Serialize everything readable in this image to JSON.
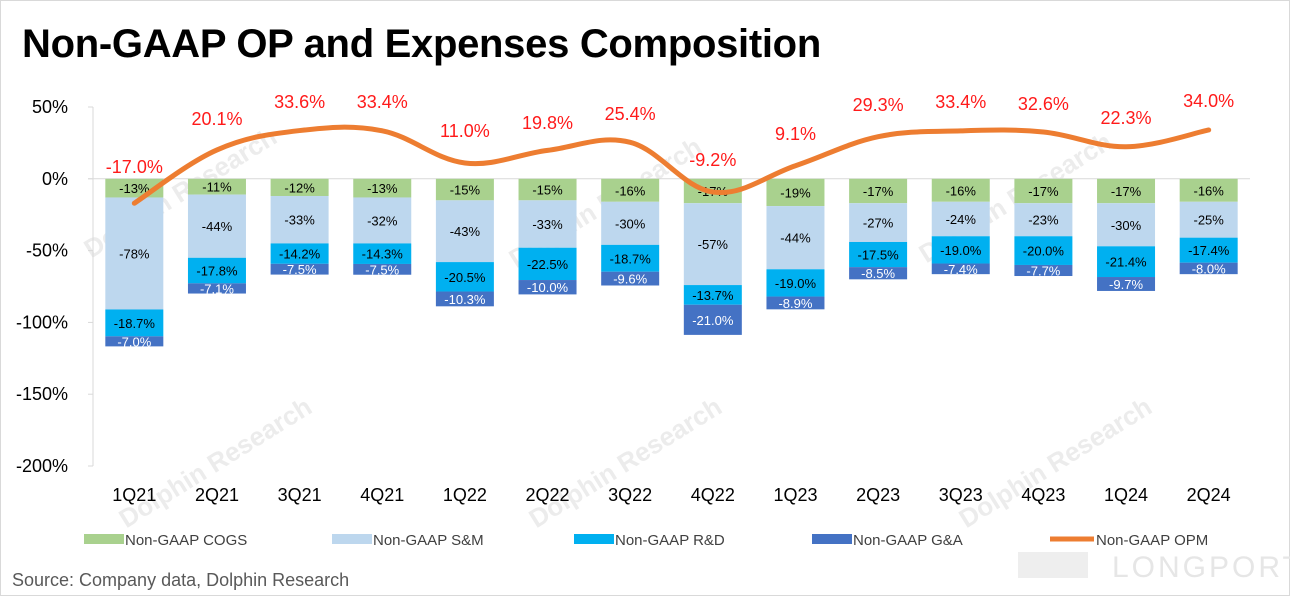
{
  "title": "Non-GAAP OP and Expenses Composition",
  "source": "Source: Company data, Dolphin Research",
  "watermark": "Dolphin Research",
  "watermark_brand": "LONGPORT",
  "chart_data": {
    "type": "bar",
    "stacked": true,
    "categories": [
      "1Q21",
      "2Q21",
      "3Q21",
      "4Q21",
      "1Q22",
      "2Q22",
      "3Q22",
      "4Q22",
      "1Q23",
      "2Q23",
      "3Q23",
      "4Q23",
      "1Q24",
      "2Q24"
    ],
    "ylim": [
      -200,
      50
    ],
    "yticks": [
      50,
      0,
      -50,
      -100,
      -150,
      -200
    ],
    "ytick_labels": [
      "50%",
      "0%",
      "-50%",
      "-100%",
      "-150%",
      "-200%"
    ],
    "series": [
      {
        "name": "Non-GAAP COGS",
        "color": "#a9d18e",
        "label_color": "#000000",
        "values": [
          -13,
          -11,
          -12,
          -13,
          -15,
          -15,
          -16,
          -17,
          -19,
          -17,
          -16,
          -17,
          -17,
          -16
        ],
        "labels": [
          "-13%",
          "-11%",
          "-12%",
          "-13%",
          "-15%",
          "-15%",
          "-16%",
          "-17%",
          "-19%",
          "-17%",
          "-16%",
          "-17%",
          "-17%",
          "-16%"
        ]
      },
      {
        "name": "Non-GAAP S&M",
        "color": "#bdd7ee",
        "label_color": "#000000",
        "values": [
          -78,
          -44,
          -33,
          -32,
          -43,
          -33,
          -30,
          -57,
          -44,
          -27,
          -24,
          -23,
          -30,
          -25
        ],
        "labels": [
          "-78%",
          "-44%",
          "-33%",
          "-32%",
          "-43%",
          "-33%",
          "-30%",
          "-57%",
          "-44%",
          "-27%",
          "-24%",
          "-23%",
          "-30%",
          "-25%"
        ]
      },
      {
        "name": "Non-GAAP R&D",
        "color": "#00b0f0",
        "label_color": "#000000",
        "values": [
          -18.7,
          -17.8,
          -14.2,
          -14.3,
          -20.5,
          -22.5,
          -18.7,
          -13.7,
          -19.0,
          -17.5,
          -19.0,
          -20.0,
          -21.4,
          -17.4
        ],
        "labels": [
          "-18.7%",
          "-17.8%",
          "-14.2%",
          "-14.3%",
          "-20.5%",
          "-22.5%",
          "-18.7%",
          "-13.7%",
          "-19.0%",
          "-17.5%",
          "-19.0%",
          "-20.0%",
          "-21.4%",
          "-17.4%"
        ]
      },
      {
        "name": "Non-GAAP G&A",
        "color": "#4472c4",
        "label_color": "#ffffff",
        "values": [
          -7.0,
          -7.1,
          -7.5,
          -7.5,
          -10.3,
          -10.0,
          -9.6,
          -21.0,
          -8.9,
          -8.5,
          -7.4,
          -7.7,
          -9.7,
          -8.0
        ],
        "labels": [
          "-7.0%",
          "-7.1%",
          "-7.5%",
          "-7.5%",
          "-10.3%",
          "-10.0%",
          "-9.6%",
          "-21.0%",
          "-8.9%",
          "-8.5%",
          "-7.4%",
          "-7.7%",
          "-9.7%",
          "-8.0%"
        ]
      }
    ],
    "line": {
      "name": "Non-GAAP OPM",
      "color": "#ed7d31",
      "label_color": "#ff1a1a",
      "values": [
        -17.0,
        20.1,
        33.6,
        33.4,
        11.0,
        19.8,
        25.4,
        -9.2,
        9.1,
        29.3,
        33.4,
        32.6,
        22.3,
        34.0
      ],
      "labels": [
        "-17.0%",
        "20.1%",
        "33.6%",
        "33.4%",
        "11.0%",
        "19.8%",
        "25.4%",
        "-9.2%",
        "9.1%",
        "29.3%",
        "33.4%",
        "32.6%",
        "22.3%",
        "34.0%"
      ]
    },
    "legend_position": "bottom",
    "grid": false
  }
}
